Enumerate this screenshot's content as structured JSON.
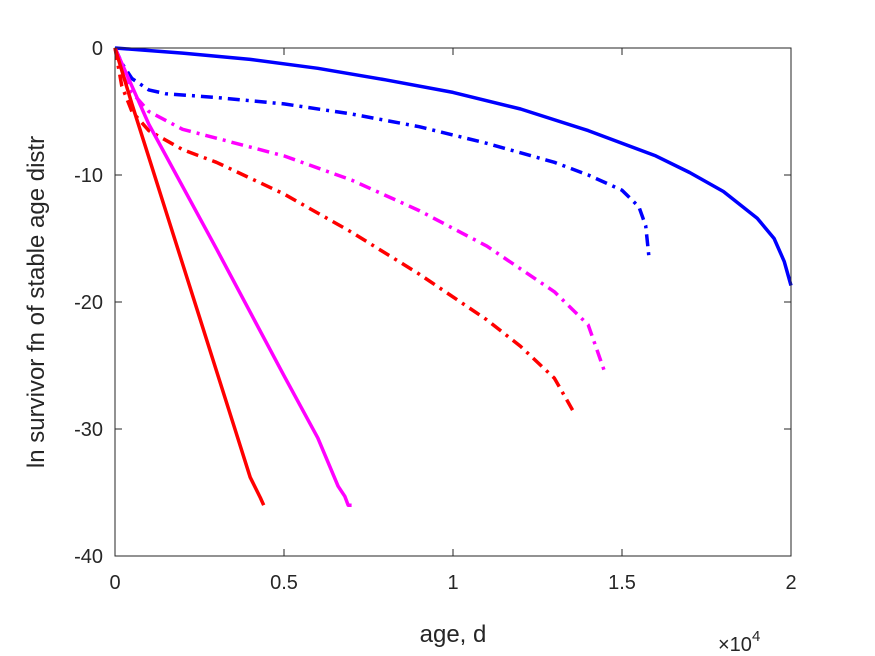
{
  "chart_data": {
    "type": "line",
    "title": "",
    "xlabel": "age, d",
    "ylabel": "ln survivor fn of stable age distr",
    "x_multiplier": "×10",
    "x_multiplier_exp": "4",
    "xlim": [
      0,
      2
    ],
    "ylim": [
      -40,
      0
    ],
    "x_ticks": [
      0,
      0.5,
      1,
      1.5,
      2
    ],
    "x_tick_labels": [
      "0",
      "0.5",
      "1",
      "1.5",
      "2"
    ],
    "y_ticks": [
      0,
      -10,
      -20,
      -30,
      -40
    ],
    "y_tick_labels": [
      "0",
      "-10",
      "-20",
      "-30",
      "-40"
    ],
    "grid": false,
    "legend": "none",
    "series": [
      {
        "color": "#0000ff",
        "style": "solid",
        "x": [
          0,
          0.2,
          0.4,
          0.6,
          0.8,
          1.0,
          1.2,
          1.4,
          1.6,
          1.7,
          1.8,
          1.9,
          1.95,
          1.98,
          2.0
        ],
        "y": [
          0,
          -0.4,
          -0.9,
          -1.6,
          -2.5,
          -3.5,
          -4.8,
          -6.5,
          -8.5,
          -9.8,
          -11.3,
          -13.4,
          -15.0,
          -16.8,
          -18.7
        ]
      },
      {
        "color": "#0000ff",
        "style": "dashdot",
        "x": [
          0,
          0.02,
          0.05,
          0.1,
          0.15,
          0.3,
          0.5,
          0.7,
          0.9,
          1.1,
          1.3,
          1.4,
          1.5,
          1.55,
          1.57,
          1.58
        ],
        "y": [
          0,
          -1.2,
          -2.4,
          -3.3,
          -3.6,
          -3.9,
          -4.4,
          -5.2,
          -6.2,
          -7.5,
          -9.0,
          -10.0,
          -11.2,
          -12.5,
          -14.0,
          -16.5
        ]
      },
      {
        "color": "#ff00ff",
        "style": "dashdot",
        "x": [
          0,
          0.02,
          0.05,
          0.1,
          0.2,
          0.3,
          0.5,
          0.7,
          0.9,
          1.1,
          1.3,
          1.4,
          1.45
        ],
        "y": [
          0,
          -2.0,
          -3.5,
          -5.0,
          -6.4,
          -7.1,
          -8.5,
          -10.4,
          -12.8,
          -15.6,
          -19.2,
          -21.8,
          -25.6
        ]
      },
      {
        "color": "#ff0000",
        "style": "dashdot",
        "x": [
          0,
          0.02,
          0.05,
          0.1,
          0.2,
          0.3,
          0.5,
          0.7,
          0.9,
          1.1,
          1.2,
          1.3,
          1.36
        ],
        "y": [
          0,
          -3.0,
          -5.0,
          -6.5,
          -8.0,
          -9.0,
          -11.5,
          -14.5,
          -17.8,
          -21.4,
          -23.5,
          -26.0,
          -28.8
        ]
      },
      {
        "color": "#ff00ff",
        "style": "solid",
        "x": [
          0,
          0.05,
          0.1,
          0.2,
          0.3,
          0.4,
          0.5,
          0.6,
          0.66,
          0.68,
          0.69,
          0.7
        ],
        "y": [
          0,
          -3.0,
          -6.0,
          -10.9,
          -15.8,
          -20.8,
          -25.8,
          -30.7,
          -34.5,
          -35.3,
          -36.0,
          -36.0
        ]
      },
      {
        "color": "#ff0000",
        "style": "solid",
        "x": [
          0,
          0.05,
          0.1,
          0.15,
          0.2,
          0.25,
          0.3,
          0.35,
          0.4,
          0.43,
          0.44
        ],
        "y": [
          0,
          -4.4,
          -8.6,
          -12.8,
          -17.0,
          -21.2,
          -25.4,
          -29.6,
          -33.8,
          -35.4,
          -36.0
        ]
      }
    ]
  }
}
